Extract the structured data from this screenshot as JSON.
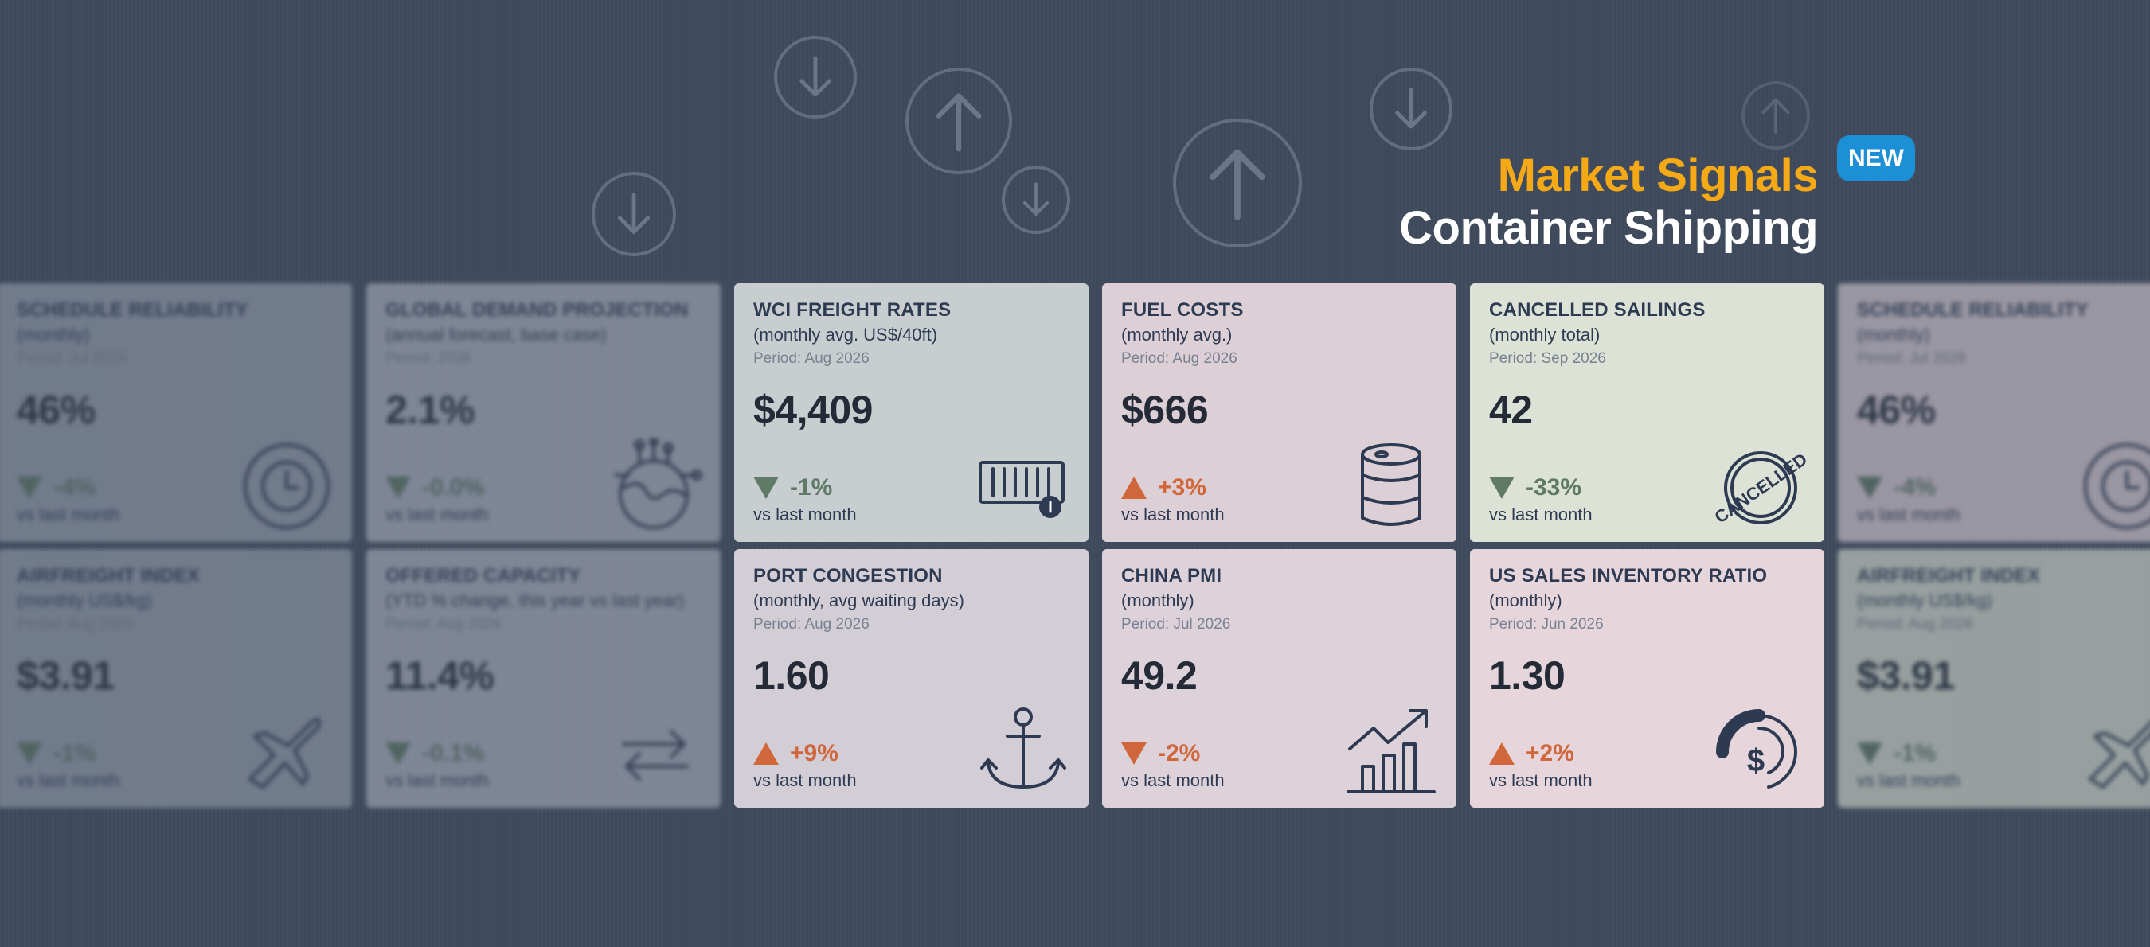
{
  "header": {
    "title_line1": "Market Signals",
    "title_line2": "Container Shipping",
    "badge": "NEW"
  },
  "colors": {
    "background": "#3e4a5c",
    "title_accent": "#f5a914",
    "badge": "#1c8fd6",
    "change_up": "#d0663a",
    "change_down": "#5f7a66"
  },
  "cards": [
    {
      "title": "SCHEDULE RELIABILITY",
      "subtitle": "(monthly)",
      "period": "Period: Jul 2026",
      "value": "46%",
      "change": "-4%",
      "direction": "down",
      "vs": "vs last month",
      "icon": "clock-icon",
      "bg": "#9aa3b3"
    },
    {
      "title": "GLOBAL DEMAND PROJECTION",
      "subtitle": "(annual forecast, base case)",
      "period": "Period: 2026",
      "value": "2.1%",
      "change": "-0.0%",
      "direction": "down",
      "vs": "vs last month",
      "icon": "globe-network-icon",
      "bg": "#b3b6c5"
    },
    {
      "title": "WCI FREIGHT RATES",
      "subtitle": "(monthly avg. US$/40ft)",
      "period": "Period: Aug 2026",
      "value": "$4,409",
      "change": "-1%",
      "direction": "down",
      "vs": "vs last month",
      "icon": "container-icon",
      "bg": "#c8ced0"
    },
    {
      "title": "FUEL COSTS",
      "subtitle": "(monthly avg.)",
      "period": "Period: Aug 2026",
      "value": "$666",
      "change": "+3%",
      "direction": "up",
      "vs": "vs last month",
      "icon": "oil-barrel-icon",
      "bg": "#dccfd6"
    },
    {
      "title": "CANCELLED SAILINGS",
      "subtitle": "(monthly total)",
      "period": "Period: Sep 2026",
      "value": "42",
      "change": "-33%",
      "direction": "down",
      "vs": "vs last month",
      "icon": "cancelled-stamp-icon",
      "bg": "#dde2d6"
    },
    {
      "title": "SCHEDULE RELIABILITY",
      "subtitle": "(monthly)",
      "period": "Period: Jul 2026",
      "value": "46%",
      "change": "-4%",
      "direction": "down",
      "vs": "vs last month",
      "icon": "clock-icon",
      "bg": "#e3d4da"
    },
    {
      "title": "AIRFREIGHT INDEX",
      "subtitle": "(monthly US$/kg)",
      "period": "Period: Aug 2026",
      "value": "$3.91",
      "change": "-1%",
      "direction": "down",
      "vs": "vs last month",
      "icon": "airplane-icon",
      "bg": "#9aa3b3"
    },
    {
      "title": "OFFERED CAPACITY",
      "subtitle": "(YTD % change, this year vs last year)",
      "period": "Period: Aug 2026",
      "value": "11.4%",
      "change": "-0.1%",
      "direction": "down",
      "vs": "vs last month",
      "icon": "exchange-arrows-icon",
      "bg": "#b3b6c5"
    },
    {
      "title": "PORT CONGESTION",
      "subtitle": "(monthly, avg waiting days)",
      "period": "Period: Aug 2026",
      "value": "1.60",
      "change": "+9%",
      "direction": "up",
      "vs": "vs last month",
      "icon": "anchor-icon",
      "bg": "#d3cdd6"
    },
    {
      "title": "CHINA PMI",
      "subtitle": "(monthly)",
      "period": "Period: Jul 2026",
      "value": "49.2",
      "change": "-2%",
      "direction": "down_orange",
      "vs": "vs last month",
      "icon": "growth-chart-icon",
      "bg": "#ddd2da"
    },
    {
      "title": "US SALES INVENTORY RATIO",
      "subtitle": "(monthly)",
      "period": "Period: Jun 2026",
      "value": "1.30",
      "change": "+2%",
      "direction": "up",
      "vs": "vs last month",
      "icon": "money-gauge-icon",
      "bg": "#e6d6dc"
    },
    {
      "title": "AIRFREIGHT INDEX",
      "subtitle": "(monthly US$/kg)",
      "period": "Period: Aug 2026",
      "value": "$3.91",
      "change": "-1%",
      "direction": "down",
      "vs": "vs last month",
      "icon": "airplane-icon",
      "bg": "#dfe4d6"
    }
  ]
}
